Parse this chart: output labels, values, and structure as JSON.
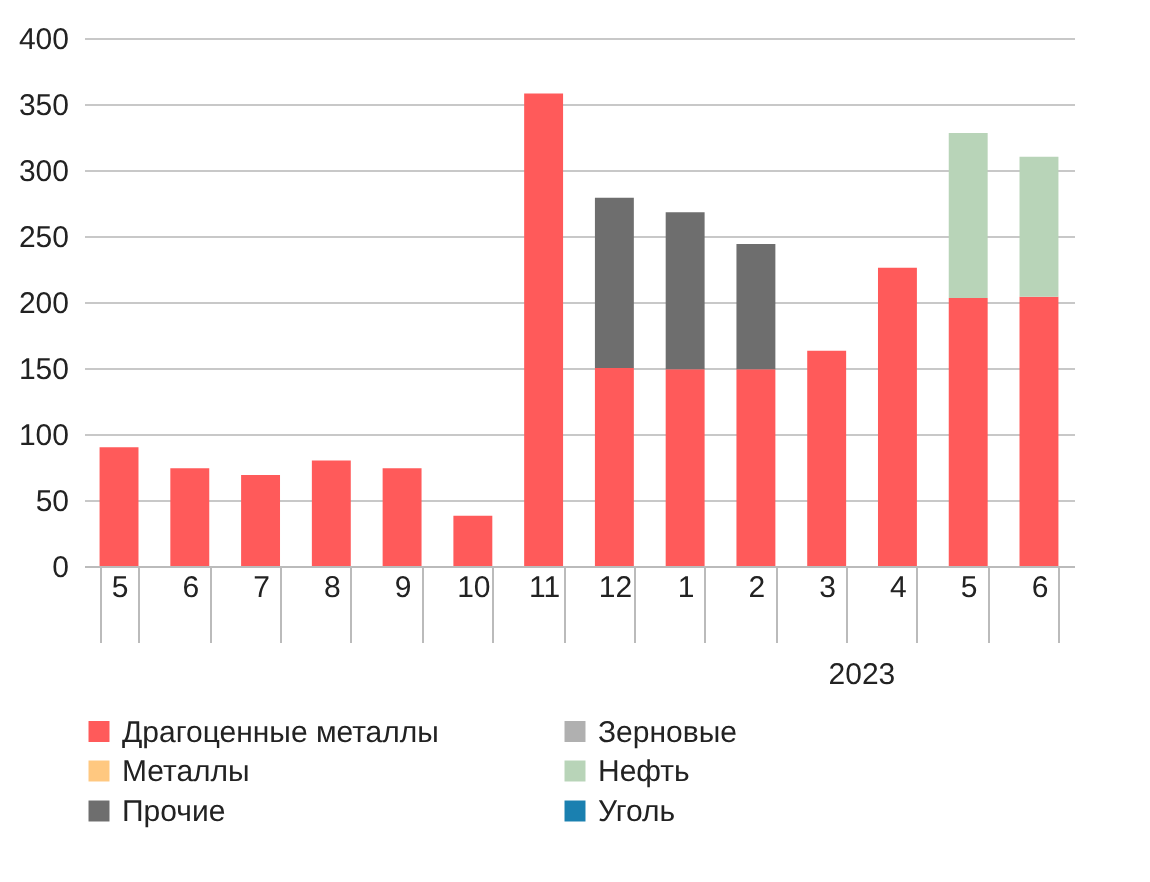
{
  "chart_data": {
    "type": "bar",
    "stacked": true,
    "categories": [
      "5",
      "6",
      "7",
      "8",
      "9",
      "10",
      "11",
      "12",
      "1",
      "2",
      "3",
      "4",
      "5",
      "6"
    ],
    "series": [
      {
        "name": "Драгоценные металлы",
        "color": "#ff5a5a",
        "values": [
          90,
          74,
          69,
          80,
          74,
          38,
          358,
          150,
          149,
          149,
          163,
          226,
          203,
          204
        ]
      },
      {
        "name": "Зерновые",
        "color": "#b0b0b0",
        "values": [
          null,
          null,
          null,
          null,
          null,
          null,
          null,
          null,
          null,
          null,
          null,
          null,
          null,
          null
        ]
      },
      {
        "name": "Металлы",
        "color": "#ffc880",
        "values": [
          null,
          null,
          null,
          null,
          null,
          null,
          null,
          null,
          null,
          null,
          null,
          null,
          null,
          null
        ]
      },
      {
        "name": "Нефть",
        "color": "#b8d4b8",
        "values": [
          null,
          null,
          null,
          null,
          null,
          null,
          null,
          null,
          null,
          null,
          null,
          null,
          125,
          106
        ]
      },
      {
        "name": "Прочие",
        "color": "#6e6e6e",
        "values": [
          null,
          null,
          null,
          null,
          null,
          null,
          null,
          129,
          119,
          95,
          null,
          null,
          null,
          null
        ]
      },
      {
        "name": "Уголь",
        "color": "#1a80b0",
        "values": [
          null,
          null,
          null,
          null,
          null,
          null,
          null,
          null,
          null,
          null,
          null,
          null,
          null,
          null
        ]
      }
    ],
    "ylim": [
      0,
      400
    ],
    "yticks": [
      0,
      50,
      100,
      150,
      200,
      250,
      300,
      350,
      400
    ],
    "grid": "y",
    "legend": "bottom",
    "annotations": [
      "2023"
    ]
  }
}
